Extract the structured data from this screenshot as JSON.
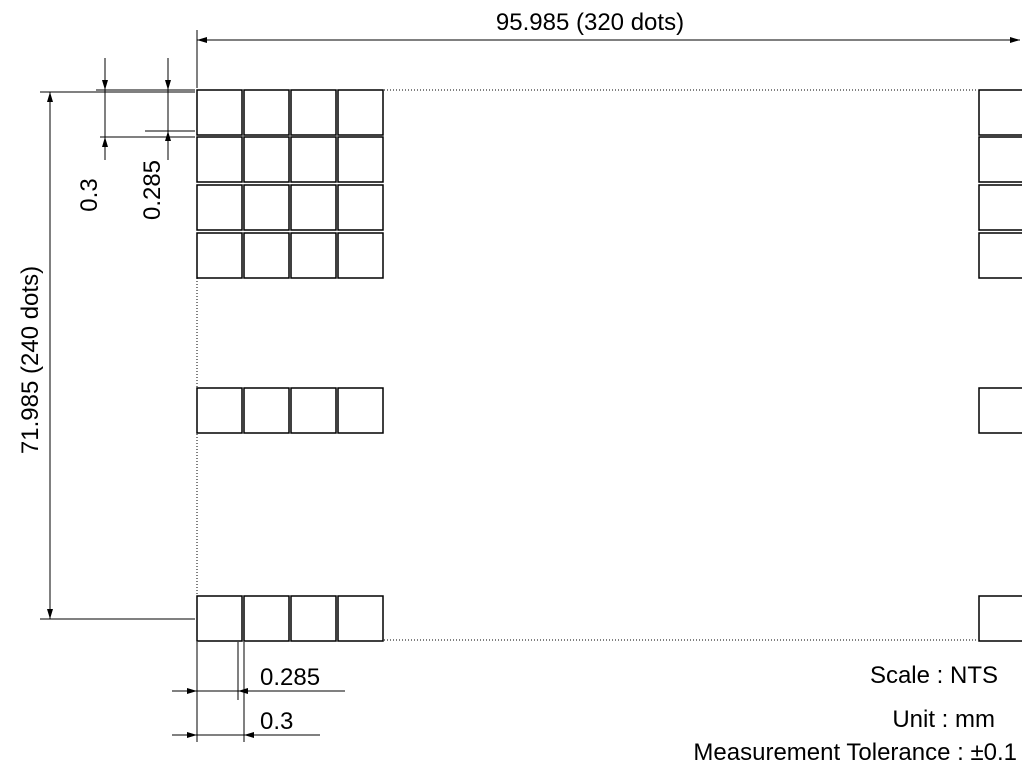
{
  "dimensions": {
    "width_label": "95.985 (320  dots)",
    "height_label": "71.985 (240  dots)",
    "dot_pitch_label": "0.3",
    "dot_size_label": "0.285",
    "bottom_dot_size_label": "0.285",
    "bottom_dot_pitch_label": "0.3"
  },
  "notes": {
    "scale": "Scale : NTS",
    "unit": "Unit : mm",
    "tolerance": "Measurement  Tolerance : ±0.1"
  }
}
